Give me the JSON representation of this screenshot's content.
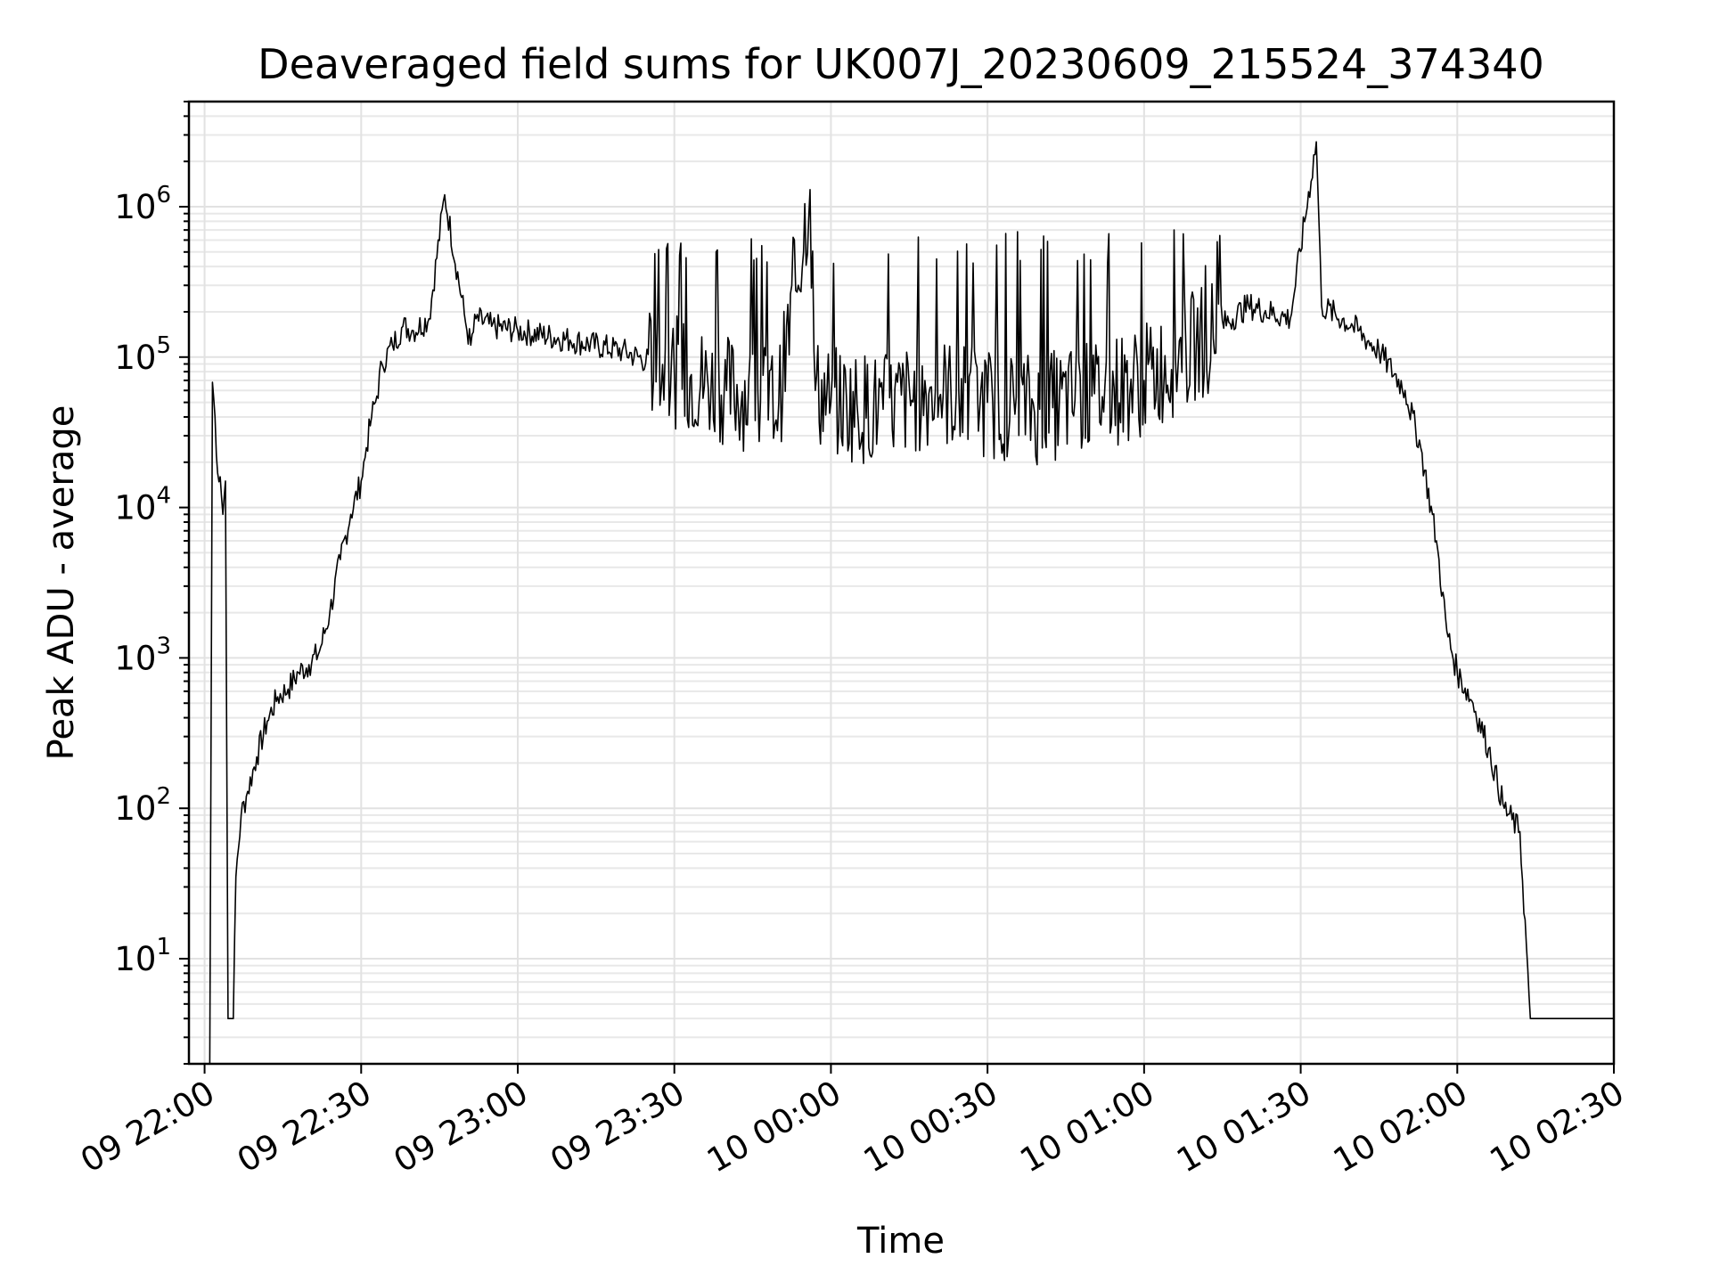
{
  "chart_data": {
    "type": "line",
    "title": "Deaveraged field sums for UK007J_20230609_215524_374340",
    "xlabel": "Time",
    "ylabel": "Peak ADU - average",
    "yscale": "log",
    "ylim": [
      2,
      5000000
    ],
    "xlim": [
      "2023-06-09 21:57",
      "2023-06-10 02:30"
    ],
    "x_ticks": [
      {
        "value": "2023-06-09 22:00",
        "label": "09 22:00"
      },
      {
        "value": "2023-06-09 22:30",
        "label": "09 22:30"
      },
      {
        "value": "2023-06-09 23:00",
        "label": "09 23:00"
      },
      {
        "value": "2023-06-09 23:30",
        "label": "09 23:30"
      },
      {
        "value": "2023-06-10 00:00",
        "label": "10 00:00"
      },
      {
        "value": "2023-06-10 00:30",
        "label": "10 00:30"
      },
      {
        "value": "2023-06-10 01:00",
        "label": "10 01:00"
      },
      {
        "value": "2023-06-10 01:30",
        "label": "10 01:30"
      },
      {
        "value": "2023-06-10 02:00",
        "label": "10 02:00"
      },
      {
        "value": "2023-06-10 02:30",
        "label": "10 02:30"
      }
    ],
    "y_ticks": [
      {
        "value": 10,
        "base": "10",
        "exp": "1"
      },
      {
        "value": 100,
        "base": "10",
        "exp": "2"
      },
      {
        "value": 1000,
        "base": "10",
        "exp": "3"
      },
      {
        "value": 10000,
        "base": "10",
        "exp": "4"
      },
      {
        "value": 100000,
        "base": "10",
        "exp": "5"
      },
      {
        "value": 1000000,
        "base": "10",
        "exp": "6"
      }
    ],
    "grid": true,
    "legend": "none",
    "line_color": "#000000",
    "series": [
      {
        "x": [
          "2023-06-09 22:01",
          "2023-06-09 22:01:30",
          "2023-06-09 22:02",
          "2023-06-09 22:02:30",
          "2023-06-09 22:03",
          "2023-06-09 22:03:30",
          "2023-06-09 22:04",
          "2023-06-09 22:04:30",
          "2023-06-09 22:05",
          "2023-06-09 22:05:30",
          "2023-06-09 22:06",
          "2023-06-09 22:07",
          "2023-06-09 22:08",
          "2023-06-09 22:10",
          "2023-06-09 22:12",
          "2023-06-09 22:14",
          "2023-06-09 22:16",
          "2023-06-09 22:18",
          "2023-06-09 22:20",
          "2023-06-09 22:22",
          "2023-06-09 22:24",
          "2023-06-09 22:26",
          "2023-06-09 22:28",
          "2023-06-09 22:30",
          "2023-06-09 22:31",
          "2023-06-09 22:32",
          "2023-06-09 22:33",
          "2023-06-09 22:34",
          "2023-06-09 22:36",
          "2023-06-09 22:38",
          "2023-06-09 22:40",
          "2023-06-09 22:43",
          "2023-06-09 22:46",
          "2023-06-09 22:50",
          "2023-06-09 22:51",
          "2023-06-09 22:52",
          "2023-06-09 22:55",
          "2023-06-09 23:00",
          "2023-06-09 23:10",
          "2023-06-09 23:20",
          "2023-06-09 23:30",
          "2023-06-09 23:40",
          "2023-06-09 23:50",
          "2023-06-09 23:56",
          "2023-06-09 23:57",
          "2023-06-10 00:00",
          "2023-06-10 00:10",
          "2023-06-10 00:20",
          "2023-06-10 00:30",
          "2023-06-10 00:40",
          "2023-06-10 00:50",
          "2023-06-10 01:00",
          "2023-06-10 01:10",
          "2023-06-10 01:20",
          "2023-06-10 01:28",
          "2023-06-10 01:33",
          "2023-06-10 01:34",
          "2023-06-10 01:40",
          "2023-06-10 01:45",
          "2023-06-10 01:50",
          "2023-06-10 01:53",
          "2023-06-10 01:56",
          "2023-06-10 01:58",
          "2023-06-10 02:00",
          "2023-06-10 02:03",
          "2023-06-10 02:06",
          "2023-06-10 02:09",
          "2023-06-10 02:12",
          "2023-06-10 02:14",
          "2023-06-10 02:16",
          "2023-06-10 02:18",
          "2023-06-10 02:19",
          "2023-06-10 02:20",
          "2023-06-10 02:20:30",
          "2023-06-10 02:22",
          "2023-06-10 02:24",
          "2023-06-10 02:26",
          "2023-06-10 02:28",
          "2023-06-10 02:30"
        ],
        "y": [
          2,
          68000,
          40000,
          17000,
          16000,
          9000,
          15000,
          4,
          4,
          4,
          35,
          90,
          120,
          220,
          380,
          550,
          620,
          800,
          900,
          1100,
          2000,
          4500,
          9000,
          15000,
          25000,
          40000,
          55000,
          90000,
          120000,
          160000,
          150000,
          180000,
          1200000,
          170000,
          120000,
          180000,
          160000,
          150000,
          130000,
          110000,
          80000,
          60000,
          50000,
          1300000,
          60000,
          50000,
          45000,
          60000,
          50000,
          45000,
          55000,
          70000,
          120000,
          220000,
          180000,
          2700000,
          220000,
          160000,
          110000,
          60000,
          25000,
          6000,
          1500,
          800,
          500,
          250,
          100,
          70,
          4,
          4,
          4,
          4,
          4,
          4,
          4,
          4,
          4,
          4,
          4
        ]
      }
    ]
  }
}
